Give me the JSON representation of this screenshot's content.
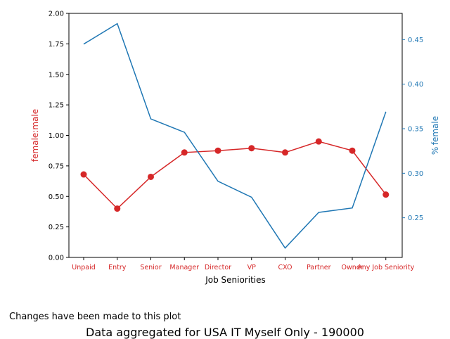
{
  "chart_data": {
    "type": "line",
    "xlabel": "Job Seniorities",
    "categories": [
      "Unpaid",
      "Entry",
      "Senior",
      "Manager",
      "Director",
      "VP",
      "CXO",
      "Partner",
      "Owner",
      "Any Job Seniority"
    ],
    "left_axis": {
      "label": "female:male",
      "color": "#d62728",
      "ylim": [
        0,
        2.0
      ],
      "ticks": [
        "0.00",
        "0.25",
        "0.50",
        "0.75",
        "1.00",
        "1.25",
        "1.50",
        "1.75",
        "2.00"
      ]
    },
    "right_axis": {
      "label": "% female",
      "color": "#1f77b4",
      "ylim": [
        0.2055,
        0.4795
      ],
      "ticks": [
        "0.25",
        "0.30",
        "0.35",
        "0.40",
        "0.45"
      ]
    },
    "series": [
      {
        "axis": "left",
        "color": "#d62728",
        "marker": "circle",
        "values": [
          0.68,
          0.4,
          0.66,
          0.86,
          0.875,
          0.895,
          0.86,
          0.95,
          0.875,
          0.515
        ]
      },
      {
        "axis": "right",
        "color": "#1f77b4",
        "marker": "none",
        "values": [
          0.445,
          0.468,
          0.361,
          0.346,
          0.291,
          0.273,
          0.216,
          0.256,
          0.261,
          0.369
        ]
      }
    ],
    "grid": false,
    "legend": "none"
  },
  "annotations": {
    "note": "Changes have been made to this plot",
    "footer": "Data aggregated for USA IT Myself Only - 190000"
  }
}
